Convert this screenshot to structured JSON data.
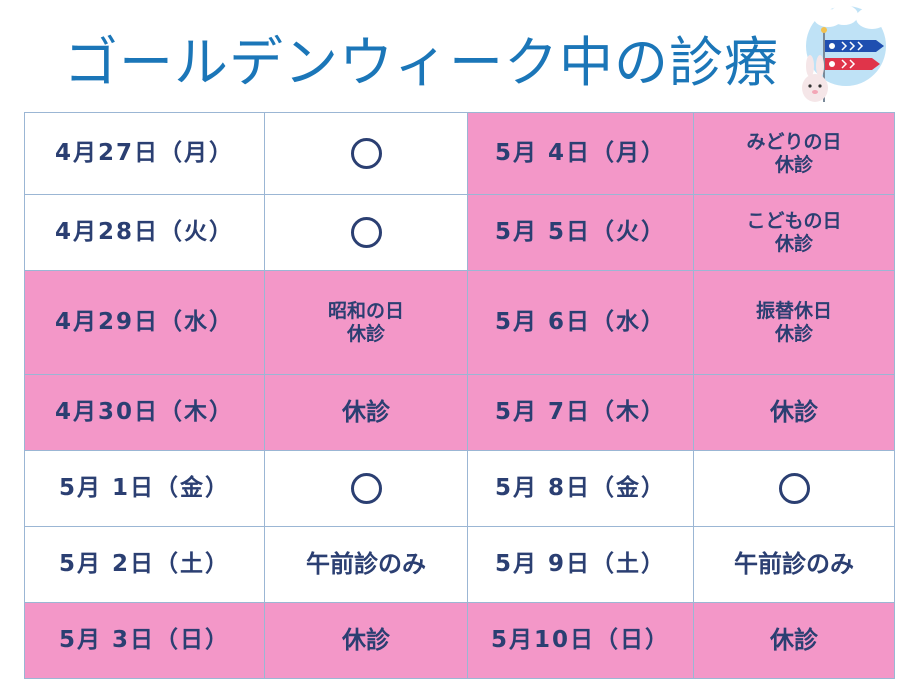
{
  "title": "ゴールデンウィーク中の診療",
  "colors": {
    "title": "#1b76b8",
    "pink": "#f397c8",
    "text": "#2b3f72"
  },
  "decoration": {
    "icon": "koinobori-rabbit-icon"
  },
  "rows": [
    {
      "left": {
        "date": "4月27日（月）",
        "status": "○",
        "highlight": false
      },
      "right": {
        "date": "5月  4日（月）",
        "status": [
          "みどりの日",
          "休診"
        ],
        "highlight": true
      }
    },
    {
      "left": {
        "date": "4月28日（火）",
        "status": "○",
        "highlight": false
      },
      "right": {
        "date": "5月  5日（火）",
        "status": [
          "こどもの日",
          "休診"
        ],
        "highlight": true
      }
    },
    {
      "left": {
        "date": "4月29日（水）",
        "status": [
          "昭和の日",
          "休診"
        ],
        "highlight": true
      },
      "right": {
        "date": "5月  6日（水）",
        "status": [
          "振替休日",
          "休診"
        ],
        "highlight": true
      }
    },
    {
      "left": {
        "date": "4月30日（木）",
        "status": "休診",
        "highlight": true
      },
      "right": {
        "date": "5月  7日（木）",
        "status": "休診",
        "highlight": true
      }
    },
    {
      "left": {
        "date": "5月  1日（金）",
        "status": "○",
        "highlight": false
      },
      "right": {
        "date": "5月  8日（金）",
        "status": "○",
        "highlight": false
      }
    },
    {
      "left": {
        "date": "5月  2日（土）",
        "status": "午前診のみ",
        "highlight": false
      },
      "right": {
        "date": "5月  9日（土）",
        "status": "午前診のみ",
        "highlight": false
      }
    },
    {
      "left": {
        "date": "5月  3日（日）",
        "status": "休診",
        "highlight": true
      },
      "right": {
        "date": "5月10日（日）",
        "status": "休診",
        "highlight": true
      }
    }
  ]
}
